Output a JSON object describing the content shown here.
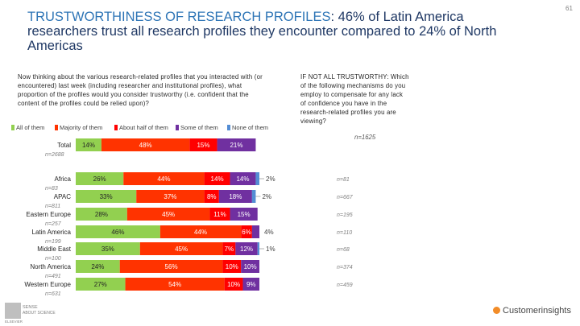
{
  "page": {
    "number": "61",
    "title_highlight": "TRUSTWORTHINESS OF RESEARCH PROFILES",
    "title_rest": ": 46% of Latin America researchers trust all research profiles they encounter compared to 24% of North Americas",
    "question": "Now thinking about the various research-related profiles that you interacted with (or encountered) last week (including researcher and institutional profiles), what proportion of the profiles would you consider trustworthy (i.e. confident that the content of the profiles could be relied upon)?",
    "side_question": "IF NOT ALL TRUSTWORTHY: Which of the following mechanisms do you employ to compensate for any lack of confidence you have in the research-related profiles you are viewing?",
    "side_n": "n=1625",
    "logo_left_line1": "SENSE",
    "logo_left_line2": "ABOUT SCIENCE",
    "logo_left_line3": "ELSEVIER",
    "logo_right": "Customerinsights"
  },
  "colors": {
    "all": "#92d050",
    "majority": "#ff3300",
    "about_half": "#ff0000",
    "some": "#7030a0",
    "none": "#548dd4"
  },
  "chart_data": {
    "type": "bar",
    "orientation": "horizontal",
    "stacked": true,
    "unit": "%",
    "xlim": [
      0,
      100
    ],
    "legend": [
      "All of them",
      "Majority of them",
      "About half of them",
      "Some of them",
      "None of them"
    ],
    "categories": [
      "Total",
      "Africa",
      "APAC",
      "Eastern Europe",
      "Latin America",
      "Middle East",
      "North America",
      "Western Europe"
    ],
    "sample_sizes": [
      "n=2688",
      "n=83",
      "n=811",
      "n=257",
      "n=199",
      "n=100",
      "n=491",
      "n=631"
    ],
    "side_sample_sizes": [
      "",
      "n=81",
      "n=667",
      "n=195",
      "n=110",
      "n=68",
      "n=374",
      "n=459"
    ],
    "series": [
      {
        "name": "All of them",
        "values": [
          14,
          26,
          33,
          28,
          46,
          35,
          24,
          27
        ]
      },
      {
        "name": "Majority of them",
        "values": [
          48,
          44,
          37,
          45,
          44,
          45,
          56,
          54
        ]
      },
      {
        "name": "About half of them",
        "values": [
          15,
          14,
          8,
          11,
          6,
          7,
          10,
          10
        ]
      },
      {
        "name": "Some of them",
        "values": [
          21,
          14,
          18,
          15,
          4,
          12,
          10,
          9
        ]
      },
      {
        "name": "None of them",
        "values": [
          0,
          2,
          2,
          0,
          0,
          1,
          0,
          0
        ]
      }
    ],
    "labels": [
      [
        "14%",
        "48%",
        "15%",
        "21%",
        ""
      ],
      [
        "26%",
        "44%",
        "14%",
        "14%",
        "2%"
      ],
      [
        "33%",
        "37%",
        "8%",
        "18%",
        "2%"
      ],
      [
        "28%",
        "45%",
        "11%",
        "15%",
        ""
      ],
      [
        "46%",
        "44%",
        "6%",
        "4%",
        ""
      ],
      [
        "35%",
        "45%",
        "7%",
        "12%",
        "1%"
      ],
      [
        "24%",
        "56%",
        "10%",
        "10%",
        ""
      ],
      [
        "27%",
        "54%",
        "10%",
        "9%",
        ""
      ]
    ]
  }
}
